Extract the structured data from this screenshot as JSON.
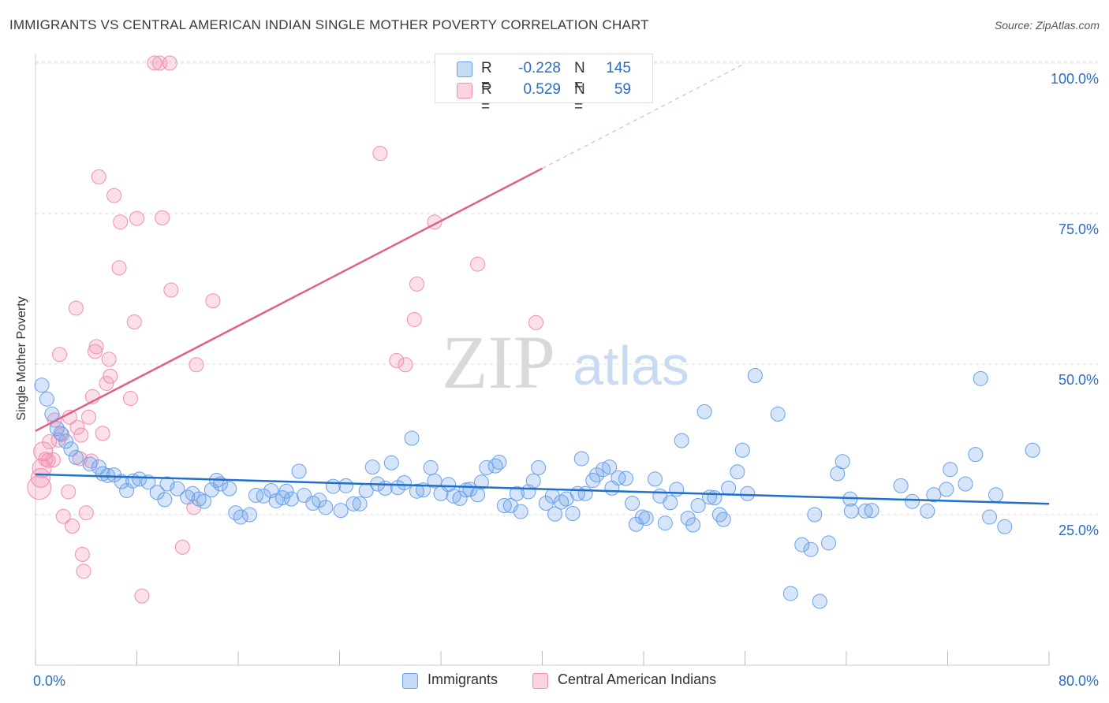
{
  "title": "IMMIGRANTS VS CENTRAL AMERICAN INDIAN SINGLE MOTHER POVERTY CORRELATION CHART",
  "source": "Source: ZipAtlas.com",
  "watermark": {
    "zip": "ZIP",
    "atlas": "atlas"
  },
  "legend": {
    "r_label": "R =",
    "n_label": "N =",
    "rows": [
      {
        "r": "-0.228",
        "n": "145",
        "color": "#6aa0e8"
      },
      {
        "r": "0.529",
        "n": "59",
        "color": "#f08fb0"
      }
    ]
  },
  "colors": {
    "blue": "#6aa0e8",
    "blue_line": "#1f6fce",
    "pink": "#f08fb0",
    "pink_line": "#e0608a",
    "tick_text": "#2b6cc4"
  },
  "chart_data": {
    "type": "scatter",
    "title": "IMMIGRANTS VS CENTRAL AMERICAN INDIAN SINGLE MOTHER POVERTY CORRELATION CHART",
    "xlabel": "",
    "ylabel": "Single Mother Poverty",
    "xlim": [
      0,
      80
    ],
    "ylim": [
      0,
      100
    ],
    "x_tick_labels": [
      "0.0%",
      "80.0%"
    ],
    "y_tick_labels": [
      "25.0%",
      "50.0%",
      "75.0%",
      "100.0%"
    ],
    "y_ticks": [
      25,
      50,
      75,
      100
    ],
    "grid": true,
    "legend_position": "bottom",
    "series": [
      {
        "name": "Immigrants",
        "r": -0.228,
        "n": 145,
        "trend": {
          "x0": 0,
          "y0": 31.7,
          "x1": 80,
          "y1": 26.8,
          "dashed_to": 80
        },
        "points": [
          [
            0.5,
            46.5
          ],
          [
            0.9,
            44.2
          ],
          [
            1.3,
            41.7
          ],
          [
            1.7,
            39.3
          ],
          [
            2.0,
            38.5
          ],
          [
            2.4,
            37.2
          ],
          [
            2.8,
            35.9
          ],
          [
            3.2,
            34.5
          ],
          [
            4.3,
            33.4
          ],
          [
            5.0,
            32.9
          ],
          [
            5.3,
            31.8
          ],
          [
            5.7,
            31.5
          ],
          [
            6.2,
            31.6
          ],
          [
            6.8,
            30.5
          ],
          [
            7.2,
            29.0
          ],
          [
            7.7,
            30.6
          ],
          [
            8.2,
            30.9
          ],
          [
            8.9,
            30.4
          ],
          [
            9.6,
            28.7
          ],
          [
            10.2,
            27.5
          ],
          [
            10.4,
            30.1
          ],
          [
            11.2,
            29.3
          ],
          [
            12.0,
            27.9
          ],
          [
            12.4,
            28.5
          ],
          [
            12.9,
            27.6
          ],
          [
            13.3,
            27.2
          ],
          [
            13.9,
            29.1
          ],
          [
            14.3,
            30.7
          ],
          [
            14.6,
            30.1
          ],
          [
            15.3,
            29.3
          ],
          [
            15.8,
            25.3
          ],
          [
            16.2,
            24.6
          ],
          [
            16.9,
            25.0
          ],
          [
            17.4,
            28.2
          ],
          [
            18.0,
            28.1
          ],
          [
            18.6,
            29.0
          ],
          [
            19.0,
            27.3
          ],
          [
            19.5,
            27.8
          ],
          [
            19.8,
            28.9
          ],
          [
            20.2,
            27.6
          ],
          [
            20.8,
            32.2
          ],
          [
            21.2,
            28.2
          ],
          [
            21.9,
            26.9
          ],
          [
            22.4,
            27.4
          ],
          [
            22.9,
            26.2
          ],
          [
            23.5,
            29.7
          ],
          [
            24.1,
            25.7
          ],
          [
            24.5,
            29.8
          ],
          [
            25.1,
            26.8
          ],
          [
            25.6,
            26.8
          ],
          [
            26.1,
            29.0
          ],
          [
            26.6,
            32.9
          ],
          [
            27.0,
            30.1
          ],
          [
            27.6,
            29.4
          ],
          [
            28.1,
            33.6
          ],
          [
            28.6,
            29.5
          ],
          [
            29.1,
            30.3
          ],
          [
            29.7,
            37.7
          ],
          [
            30.1,
            28.9
          ],
          [
            30.6,
            29.1
          ],
          [
            31.2,
            32.8
          ],
          [
            31.5,
            30.6
          ],
          [
            32.0,
            28.5
          ],
          [
            32.6,
            30.0
          ],
          [
            33.0,
            28.1
          ],
          [
            33.5,
            27.7
          ],
          [
            34.0,
            29.1
          ],
          [
            34.3,
            29.2
          ],
          [
            34.9,
            28.3
          ],
          [
            35.2,
            30.4
          ],
          [
            35.6,
            32.8
          ],
          [
            36.3,
            33.1
          ],
          [
            36.6,
            33.7
          ],
          [
            37.0,
            26.5
          ],
          [
            37.5,
            26.5
          ],
          [
            38.0,
            28.5
          ],
          [
            38.3,
            25.5
          ],
          [
            38.9,
            28.8
          ],
          [
            39.3,
            30.6
          ],
          [
            39.7,
            32.8
          ],
          [
            40.3,
            26.9
          ],
          [
            40.8,
            28.1
          ],
          [
            41.0,
            25.1
          ],
          [
            41.5,
            27.1
          ],
          [
            41.9,
            27.6
          ],
          [
            42.4,
            25.2
          ],
          [
            42.8,
            28.5
          ],
          [
            43.1,
            34.3
          ],
          [
            43.4,
            28.5
          ],
          [
            44.0,
            30.7
          ],
          [
            44.3,
            31.6
          ],
          [
            44.8,
            32.5
          ],
          [
            45.3,
            32.9
          ],
          [
            45.5,
            29.4
          ],
          [
            46.0,
            31.1
          ],
          [
            46.6,
            31.0
          ],
          [
            47.1,
            26.9
          ],
          [
            47.4,
            23.4
          ],
          [
            47.9,
            24.6
          ],
          [
            48.2,
            24.4
          ],
          [
            48.9,
            30.9
          ],
          [
            49.3,
            28.1
          ],
          [
            49.7,
            23.6
          ],
          [
            50.1,
            27.0
          ],
          [
            50.6,
            29.2
          ],
          [
            51.0,
            37.3
          ],
          [
            51.5,
            24.4
          ],
          [
            51.9,
            23.3
          ],
          [
            52.3,
            26.5
          ],
          [
            52.8,
            42.1
          ],
          [
            53.2,
            27.9
          ],
          [
            53.6,
            27.8
          ],
          [
            54.0,
            25.0
          ],
          [
            54.3,
            24.2
          ],
          [
            54.7,
            29.4
          ],
          [
            55.4,
            32.1
          ],
          [
            55.8,
            35.7
          ],
          [
            56.2,
            28.5
          ],
          [
            56.8,
            48.1
          ],
          [
            58.6,
            41.7
          ],
          [
            59.6,
            11.9
          ],
          [
            60.5,
            20.0
          ],
          [
            61.2,
            19.2
          ],
          [
            61.5,
            25.0
          ],
          [
            61.9,
            10.6
          ],
          [
            62.6,
            20.3
          ],
          [
            63.3,
            31.8
          ],
          [
            63.7,
            33.8
          ],
          [
            64.3,
            27.6
          ],
          [
            64.4,
            25.6
          ],
          [
            65.5,
            25.6
          ],
          [
            66.0,
            25.7
          ],
          [
            68.3,
            29.8
          ],
          [
            69.2,
            27.2
          ],
          [
            70.4,
            25.6
          ],
          [
            70.9,
            28.3
          ],
          [
            71.9,
            29.2
          ],
          [
            72.2,
            32.5
          ],
          [
            73.4,
            30.1
          ],
          [
            74.2,
            35.0
          ],
          [
            74.6,
            47.6
          ],
          [
            75.3,
            24.6
          ],
          [
            75.8,
            28.3
          ],
          [
            76.5,
            23.0
          ],
          [
            78.7,
            35.7
          ]
        ]
      },
      {
        "name": "Central American Indians",
        "r": 0.529,
        "n": 59,
        "trend": {
          "x0": 0,
          "y0": 38.9,
          "x1": 40,
          "y1": 82.5,
          "dashed_to": 56
        },
        "points": [
          [
            0.3,
            29.5
          ],
          [
            0.4,
            31.1
          ],
          [
            0.5,
            32.7
          ],
          [
            0.6,
            35.5
          ],
          [
            0.8,
            34.2
          ],
          [
            1.0,
            34.0
          ],
          [
            1.1,
            37.1
          ],
          [
            1.4,
            34.1
          ],
          [
            1.5,
            40.7
          ],
          [
            1.8,
            37.4
          ],
          [
            1.9,
            51.6
          ],
          [
            2.1,
            38.3
          ],
          [
            2.2,
            24.7
          ],
          [
            2.6,
            28.8
          ],
          [
            2.7,
            41.2
          ],
          [
            2.9,
            23.1
          ],
          [
            3.2,
            59.3
          ],
          [
            3.3,
            39.5
          ],
          [
            3.5,
            34.3
          ],
          [
            3.6,
            38.2
          ],
          [
            3.7,
            18.4
          ],
          [
            3.8,
            15.6
          ],
          [
            4.0,
            25.3
          ],
          [
            4.2,
            41.2
          ],
          [
            4.4,
            33.9
          ],
          [
            4.5,
            44.6
          ],
          [
            4.7,
            52.1
          ],
          [
            4.8,
            52.9
          ],
          [
            5.0,
            81.1
          ],
          [
            5.3,
            38.5
          ],
          [
            5.6,
            46.8
          ],
          [
            5.8,
            50.8
          ],
          [
            5.9,
            48.0
          ],
          [
            6.2,
            78.0
          ],
          [
            6.6,
            66.0
          ],
          [
            6.7,
            73.6
          ],
          [
            7.5,
            44.3
          ],
          [
            7.8,
            57.0
          ],
          [
            8.0,
            74.2
          ],
          [
            8.4,
            11.5
          ],
          [
            9.4,
            100.0
          ],
          [
            9.8,
            100.0
          ],
          [
            10.0,
            74.3
          ],
          [
            10.6,
            100.0
          ],
          [
            10.7,
            62.3
          ],
          [
            11.6,
            19.6
          ],
          [
            12.5,
            26.2
          ],
          [
            12.7,
            49.9
          ],
          [
            14.0,
            60.5
          ],
          [
            27.2,
            85.0
          ],
          [
            28.5,
            50.6
          ],
          [
            29.2,
            49.9
          ],
          [
            29.9,
            57.4
          ],
          [
            30.1,
            63.3
          ],
          [
            31.5,
            73.6
          ],
          [
            32.6,
            100.0
          ],
          [
            33.2,
            100.0
          ],
          [
            34.9,
            66.6
          ],
          [
            39.5,
            56.9
          ]
        ]
      }
    ]
  }
}
